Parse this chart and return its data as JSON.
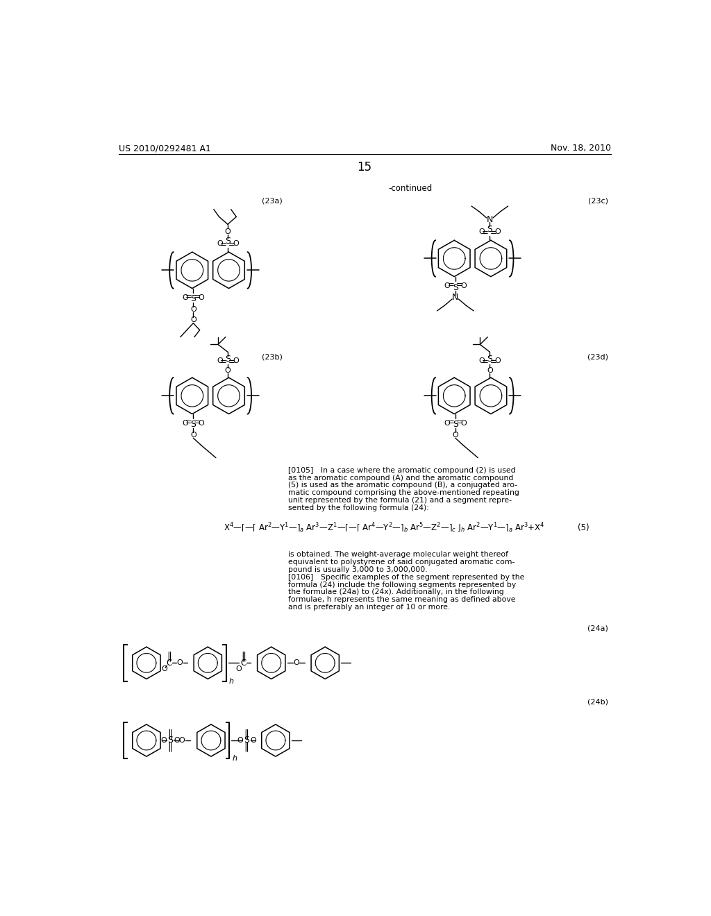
{
  "background_color": "#ffffff",
  "page_number": "15",
  "header_left": "US 2010/0292481 A1",
  "header_right": "Nov. 18, 2010",
  "continued_label": "-continued",
  "fig_width": 10.24,
  "fig_height": 13.2,
  "dpi": 100,
  "para0105": [
    "[0105]   In a case where the aromatic compound (2) is used",
    "as the aromatic compound (A) and the aromatic compound",
    "(5) is used as the aromatic compound (B), a conjugated aro-",
    "matic compound comprising the above-mentioned repeating",
    "unit represented by the formula (21) and a segment repre-",
    "sented by the following formula (24):"
  ],
  "para0106": [
    "is obtained. The weight-average molecular weight thereof",
    "equivalent to polystyrene of said conjugated aromatic com-",
    "pound is usually 3,000 to 3,000,000.",
    "[0106]   Specific examples of the segment represented by the",
    "formula (24) include the following segments represented by",
    "the formulae (24a) to (24x). Additionally, in the following",
    "formulae, h represents the same meaning as defined above",
    "and is preferably an integer of 10 or more."
  ]
}
